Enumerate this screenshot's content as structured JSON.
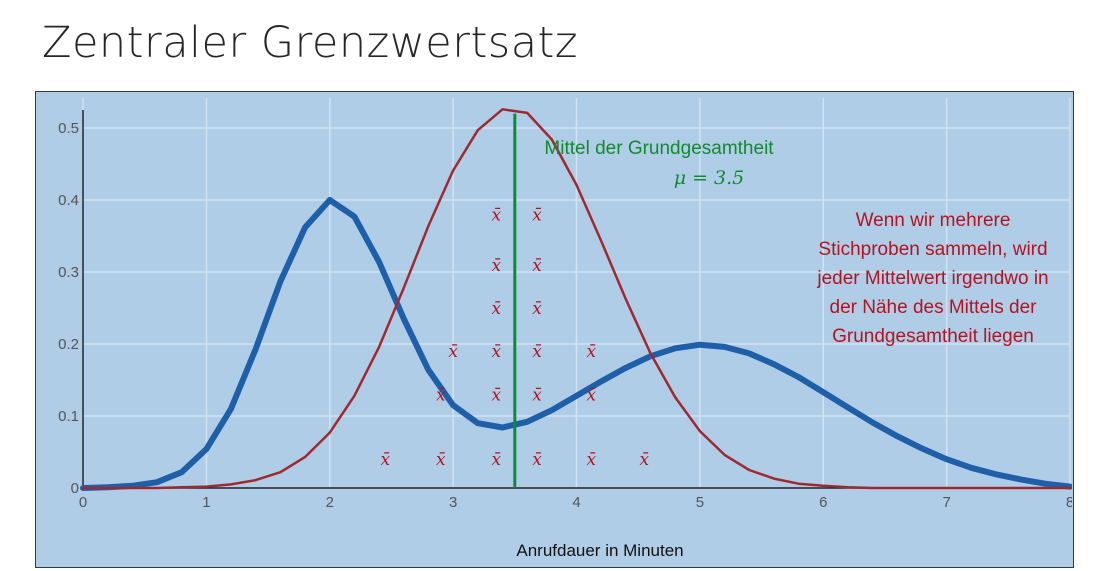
{
  "title": "Zentraler Grenzwertsatz",
  "chart_data": {
    "type": "line",
    "xlabel": "Anrufdauer in Minuten",
    "ylabel": "",
    "xlim": [
      0,
      8
    ],
    "ylim": [
      0,
      0.55
    ],
    "x_ticks": [
      "0",
      "1",
      "2",
      "3",
      "4",
      "5",
      "6",
      "7",
      "8"
    ],
    "y_ticks": [
      "0",
      "0.1",
      "0.2",
      "0.3",
      "0.4",
      "0.5"
    ],
    "grid": true,
    "series": [
      {
        "color": "#1f5fa8",
        "x": [
          0,
          0.2,
          0.4,
          0.6,
          0.8,
          1.0,
          1.2,
          1.4,
          1.6,
          1.8,
          2.0,
          2.2,
          2.4,
          2.6,
          2.8,
          3.0,
          3.2,
          3.4,
          3.6,
          3.8,
          4.0,
          4.2,
          4.4,
          4.6,
          4.8,
          5.0,
          5.2,
          5.4,
          5.6,
          5.8,
          6.0,
          6.2,
          6.4,
          6.6,
          6.8,
          7.0,
          7.2,
          7.4,
          7.6,
          7.8,
          8.0
        ],
        "values": [
          0.0,
          0.001,
          0.003,
          0.008,
          0.022,
          0.054,
          0.11,
          0.193,
          0.287,
          0.362,
          0.4,
          0.377,
          0.314,
          0.235,
          0.164,
          0.115,
          0.09,
          0.084,
          0.092,
          0.108,
          0.128,
          0.148,
          0.167,
          0.183,
          0.194,
          0.199,
          0.196,
          0.187,
          0.172,
          0.154,
          0.133,
          0.112,
          0.091,
          0.072,
          0.055,
          0.04,
          0.028,
          0.019,
          0.012,
          0.006,
          0.002
        ]
      },
      {
        "color": "#9e2a2f",
        "x": [
          0,
          0.2,
          0.4,
          0.6,
          0.8,
          1.0,
          1.2,
          1.4,
          1.6,
          1.8,
          2.0,
          2.2,
          2.4,
          2.6,
          2.8,
          3.0,
          3.2,
          3.4,
          3.6,
          3.8,
          4.0,
          4.2,
          4.4,
          4.6,
          4.8,
          5.0,
          5.2,
          5.4,
          5.6,
          5.8,
          6.0,
          6.2,
          6.4,
          6.6,
          6.8,
          7.0,
          7.2,
          7.4,
          7.6,
          7.8,
          8.0
        ],
        "values": [
          0.0,
          0.0,
          0.0,
          0.0,
          0.001,
          0.002,
          0.005,
          0.011,
          0.022,
          0.043,
          0.077,
          0.128,
          0.196,
          0.278,
          0.364,
          0.441,
          0.497,
          0.526,
          0.521,
          0.484,
          0.421,
          0.343,
          0.262,
          0.187,
          0.126,
          0.079,
          0.046,
          0.025,
          0.013,
          0.006,
          0.003,
          0.001,
          0.0,
          0.0,
          0.0,
          0.0,
          0.0,
          0.0,
          0.0,
          0.0,
          0.0
        ]
      }
    ],
    "mean_line": {
      "x": 3.5,
      "y_top": 0.52,
      "color": "#0f8a3a"
    },
    "annotations": {
      "mean_label": "Mittel der Grundgesamtheit",
      "mean_value": "μ = 3.5",
      "note_lines": [
        "Wenn wir mehrere",
        "Stichproben sammeln, wird",
        "jeder Mittelwert irgendwo in",
        "der Nähe des Mittels der",
        "Grundgesamtheit liegen"
      ]
    },
    "sample_means": {
      "symbol": "x̄",
      "marks": [
        {
          "x": 3.35,
          "y": 0.38
        },
        {
          "x": 3.68,
          "y": 0.38
        },
        {
          "x": 3.35,
          "y": 0.31
        },
        {
          "x": 3.68,
          "y": 0.31
        },
        {
          "x": 3.35,
          "y": 0.25
        },
        {
          "x": 3.68,
          "y": 0.25
        },
        {
          "x": 3.0,
          "y": 0.19
        },
        {
          "x": 3.35,
          "y": 0.19
        },
        {
          "x": 3.68,
          "y": 0.19
        },
        {
          "x": 4.12,
          "y": 0.19
        },
        {
          "x": 2.9,
          "y": 0.13
        },
        {
          "x": 3.35,
          "y": 0.13
        },
        {
          "x": 3.68,
          "y": 0.13
        },
        {
          "x": 4.12,
          "y": 0.13
        },
        {
          "x": 2.45,
          "y": 0.04
        },
        {
          "x": 2.9,
          "y": 0.04
        },
        {
          "x": 3.35,
          "y": 0.04
        },
        {
          "x": 3.68,
          "y": 0.04
        },
        {
          "x": 4.12,
          "y": 0.04
        },
        {
          "x": 4.55,
          "y": 0.04
        }
      ]
    }
  }
}
